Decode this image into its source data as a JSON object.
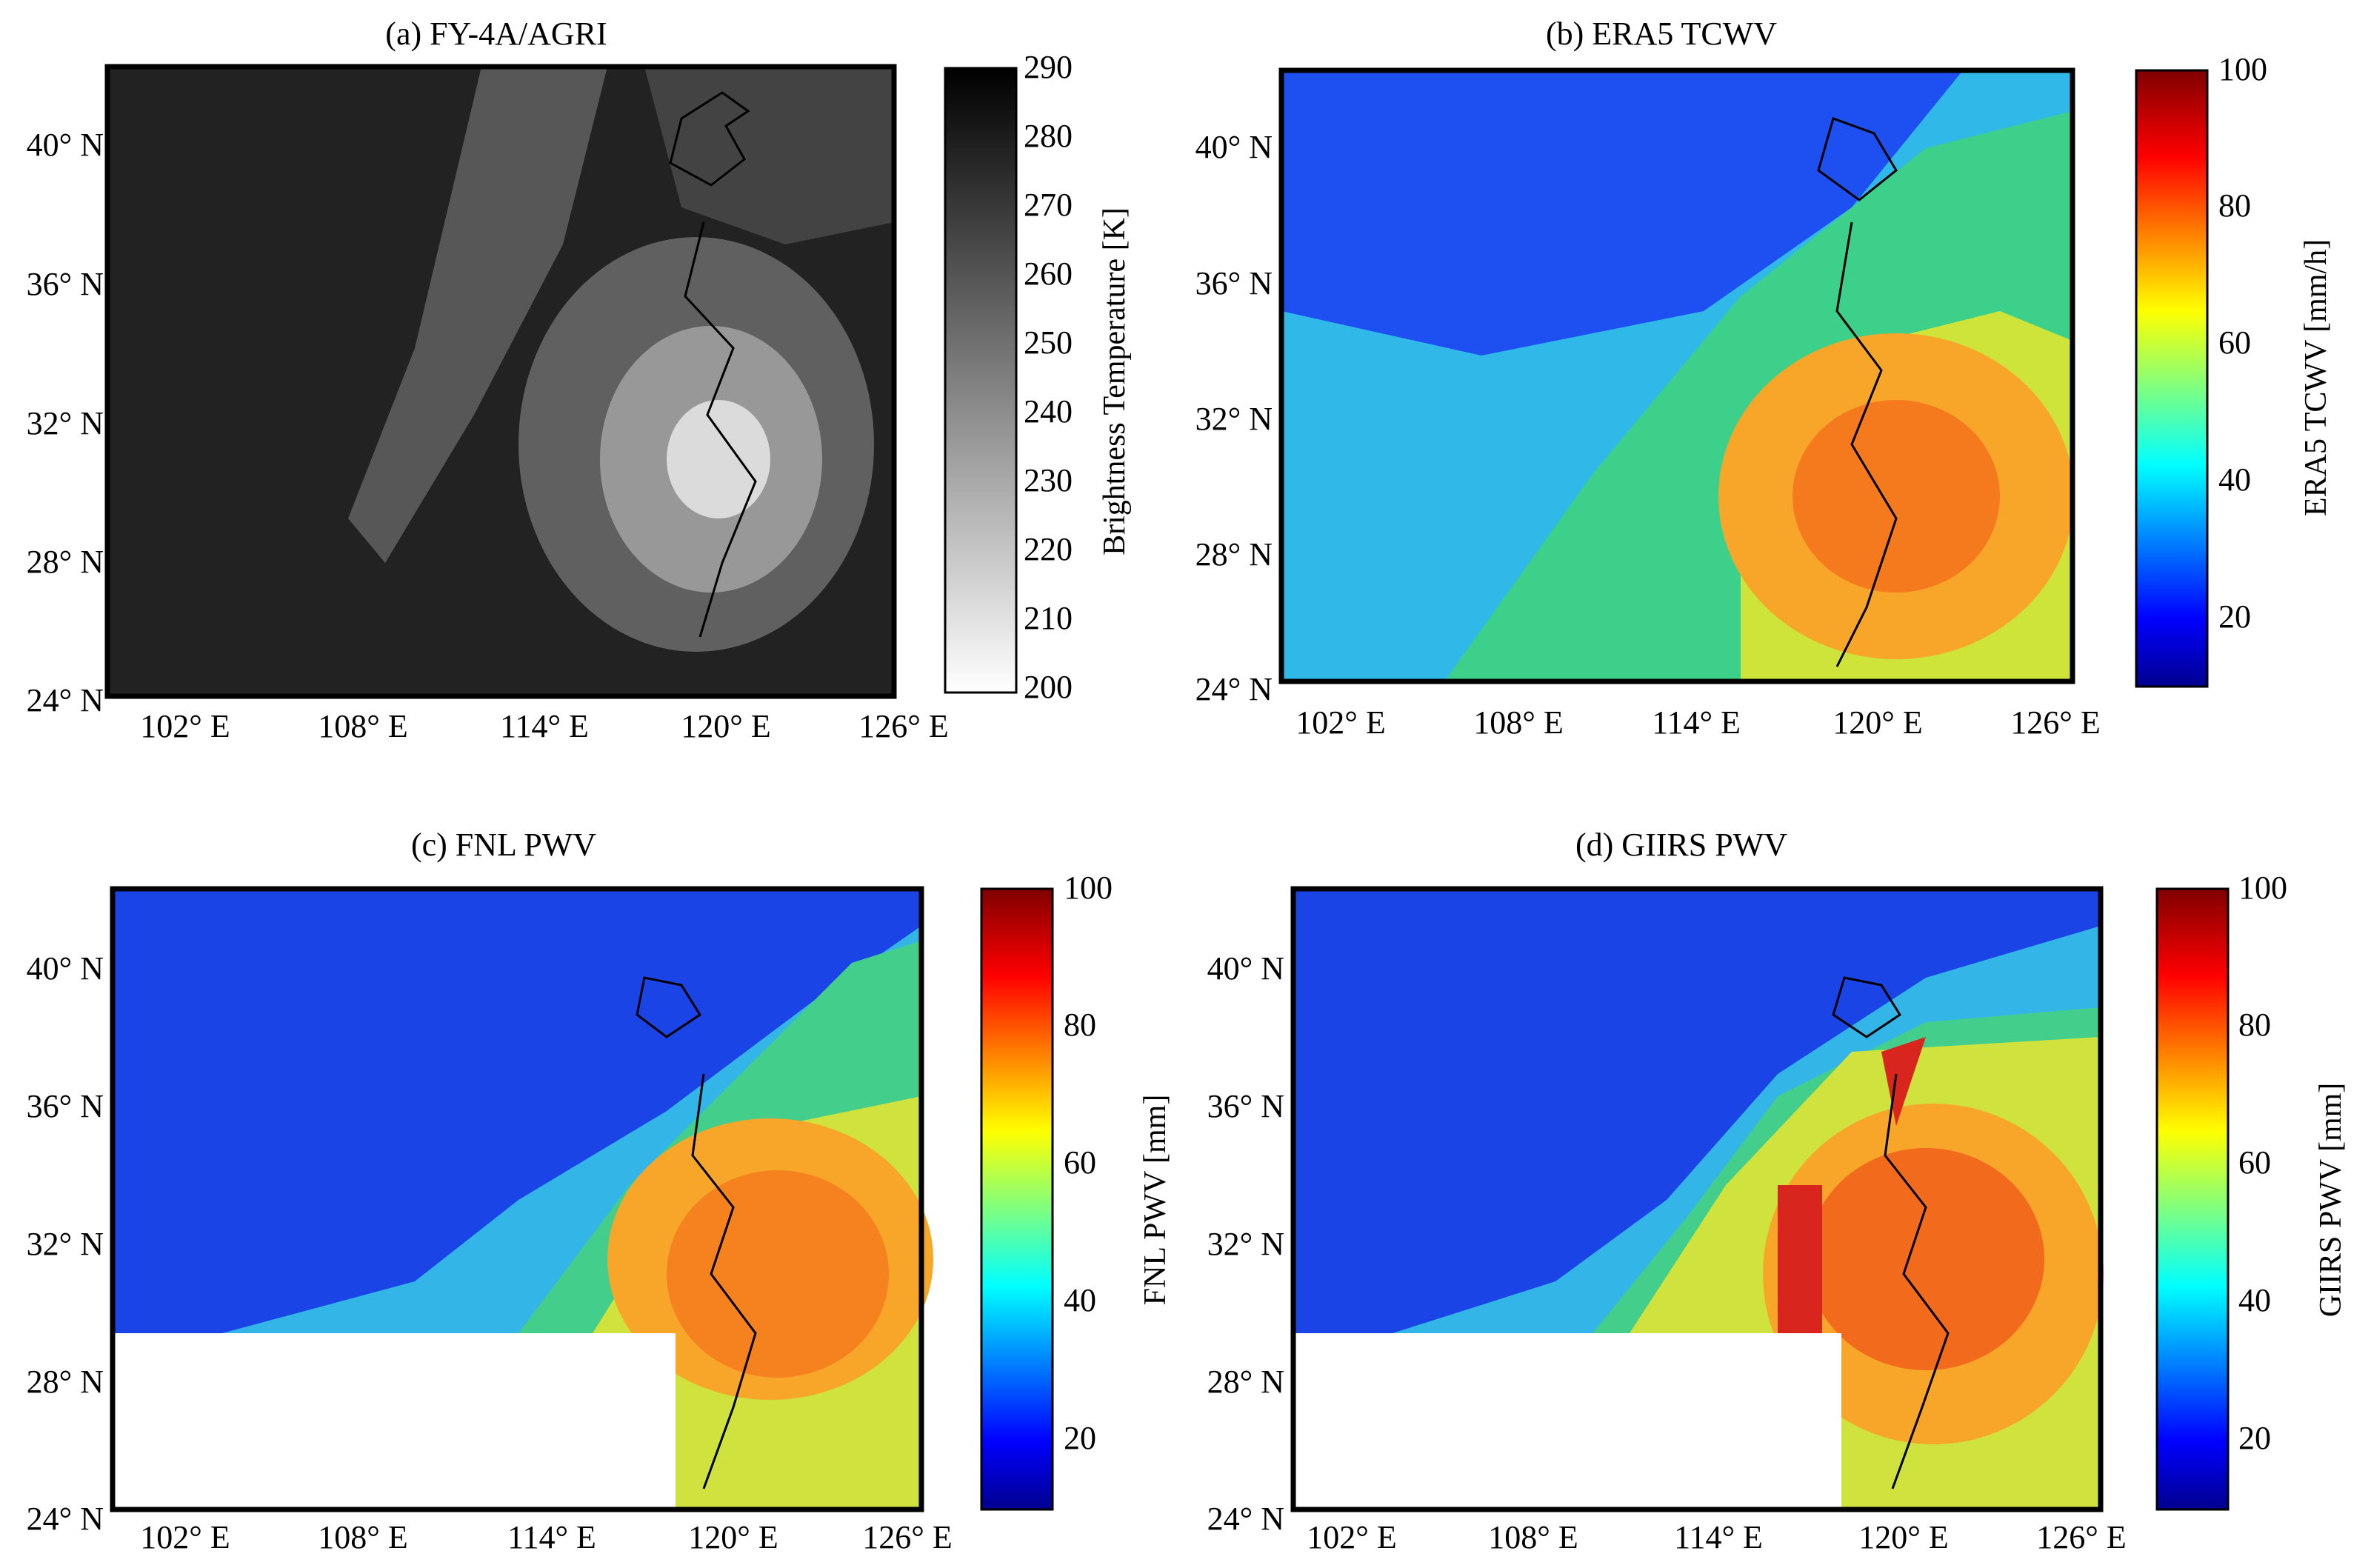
{
  "figure": {
    "y_tick_labels": [
      "40° N",
      "36° N",
      "32° N",
      "28° N",
      "24° N"
    ],
    "x_tick_labels": [
      "102° E",
      "108° E",
      "114° E",
      "120° E",
      "126° E"
    ]
  },
  "chart_data": [
    {
      "type": "heatmap",
      "title": "(a) FY-4A/AGRI",
      "xlabel": "",
      "ylabel": "",
      "xlim": [
        99,
        127
      ],
      "ylim": [
        24,
        42
      ],
      "x_ticks": [
        102,
        108,
        114,
        120,
        126
      ],
      "y_ticks": [
        40,
        36,
        32,
        28,
        24
      ],
      "colorbar": {
        "label": "Brightness Temperature [K]",
        "colormap": "gray",
        "min": 200,
        "max": 290,
        "ticks": [
          "290",
          "280",
          "270",
          "260",
          "250",
          "240",
          "230",
          "220",
          "210",
          "200"
        ]
      }
    },
    {
      "type": "heatmap",
      "title": "(b) ERA5 TCWV",
      "xlabel": "",
      "ylabel": "",
      "xlim": [
        99,
        127
      ],
      "ylim": [
        24,
        42
      ],
      "x_ticks": [
        102,
        108,
        114,
        120,
        126
      ],
      "y_ticks": [
        40,
        36,
        32,
        28,
        24
      ],
      "colorbar": {
        "label": "ERA5 TCWV [mm/h]",
        "colormap": "jet",
        "min": 10,
        "max": 100,
        "ticks": [
          "100",
          "80",
          "60",
          "40",
          "20"
        ]
      }
    },
    {
      "type": "heatmap",
      "title": "(c) FNL PWV",
      "xlabel": "",
      "ylabel": "",
      "xlim": [
        99,
        127
      ],
      "ylim": [
        24,
        42
      ],
      "x_ticks": [
        102,
        108,
        114,
        120,
        126
      ],
      "y_ticks": [
        40,
        36,
        32,
        28,
        24
      ],
      "colorbar": {
        "label": "FNL PWV [mm]",
        "colormap": "jet",
        "min": 10,
        "max": 100,
        "ticks": [
          "100",
          "80",
          "60",
          "40",
          "20"
        ]
      }
    },
    {
      "type": "heatmap",
      "title": "(d) GIIRS PWV",
      "xlabel": "",
      "ylabel": "",
      "xlim": [
        99,
        127
      ],
      "ylim": [
        24,
        42
      ],
      "x_ticks": [
        102,
        108,
        114,
        120,
        126
      ],
      "y_ticks": [
        40,
        36,
        32,
        28,
        24
      ],
      "colorbar": {
        "label": "GIIRS PWV [mm]",
        "colormap": "jet",
        "min": 10,
        "max": 100,
        "ticks": [
          "100",
          "80",
          "60",
          "40",
          "20"
        ]
      }
    }
  ]
}
